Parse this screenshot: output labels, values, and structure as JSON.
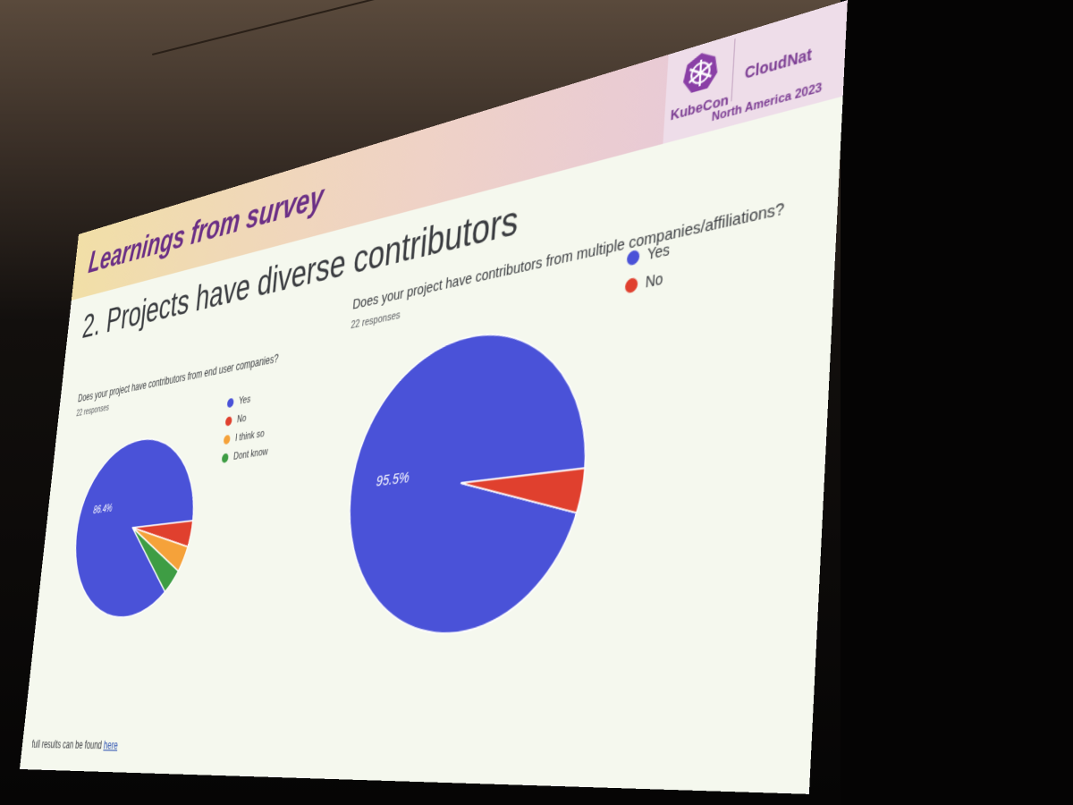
{
  "slide": {
    "banner_title": "Learnings from survey",
    "heading": "2. Projects have diverse contributors",
    "footer_text": "full results can be found",
    "footer_link": "here",
    "logo": {
      "kubecon": "KubeCon",
      "cloudnative": "CloudNat",
      "event": "North America 2023"
    }
  },
  "chart_data": [
    {
      "type": "pie",
      "title": "Does your project have contributors from end user companies?",
      "subtitle": "22 responses",
      "categories": [
        "Yes",
        "No",
        "I think so",
        "Dont know"
      ],
      "values": [
        86.4,
        4.5,
        4.5,
        4.5
      ],
      "colors": [
        "#4a52d8",
        "#e0402e",
        "#f5a23a",
        "#3e9d44"
      ],
      "data_labels": [
        "86.4%",
        "",
        "",
        ""
      ],
      "legend": "right"
    },
    {
      "type": "pie",
      "title": "Does your project have contributors from multiple companies/affiliations?",
      "subtitle": "22 responses",
      "categories": [
        "Yes",
        "No"
      ],
      "values": [
        95.5,
        4.5
      ],
      "colors": [
        "#4a52d8",
        "#e0402e"
      ],
      "data_labels": [
        "95.5%",
        ""
      ],
      "legend": "top-right"
    }
  ]
}
